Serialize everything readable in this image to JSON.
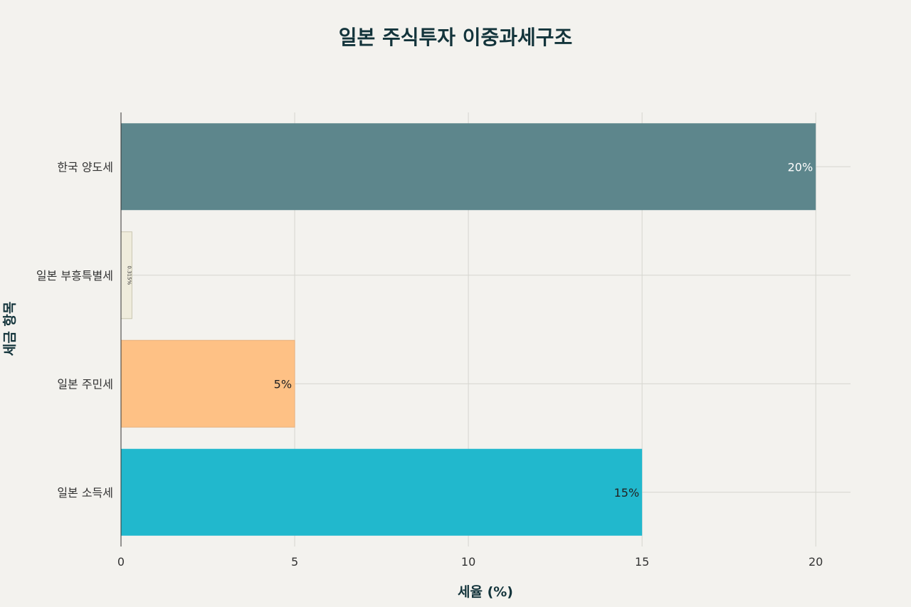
{
  "chart_data": {
    "type": "bar",
    "orientation": "horizontal",
    "title": "일본 주식투자 이중과세구조",
    "xlabel": "세율 (%)",
    "ylabel": "세금 항목",
    "xlim": [
      0,
      21
    ],
    "xticks": [
      0,
      5,
      10,
      15,
      20
    ],
    "grid": true,
    "categories": [
      "한국 양도세",
      "일본 부흥특별세",
      "일본 주민세",
      "일본 소득세"
    ],
    "values": [
      20,
      0.315,
      5,
      15
    ],
    "value_labels": [
      "20%",
      "0.315%",
      "5%",
      "15%"
    ],
    "colors": [
      "#5d868c",
      "#efecdc",
      "#fec185",
      "#21b8cd"
    ],
    "label_colors": [
      "#ffffff",
      "#333333",
      "#222222",
      "#222222"
    ]
  }
}
